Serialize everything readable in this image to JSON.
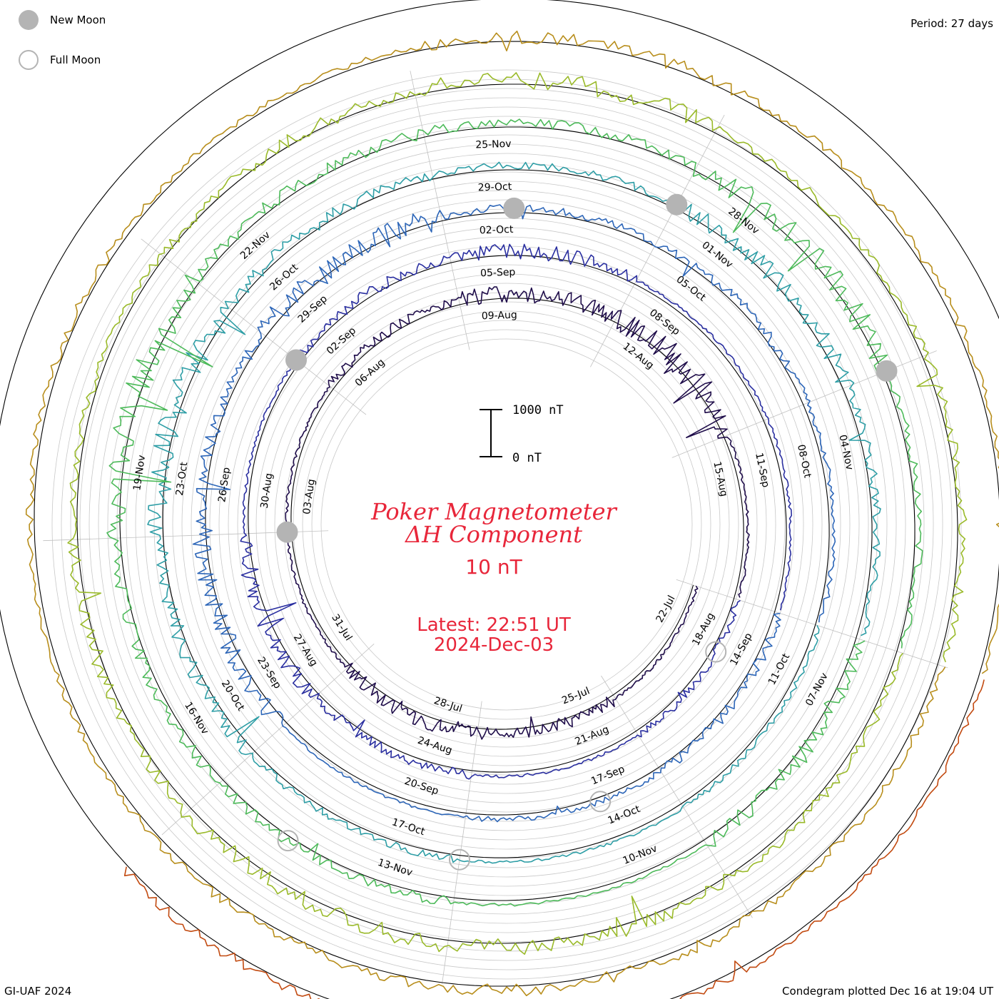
{
  "header": {
    "period": "Period: 27 days"
  },
  "legend": {
    "new_moon": {
      "label": "New Moon",
      "color": "#b4b4b4"
    },
    "full_moon": {
      "label": "Full Moon",
      "color": "#b4b4b4"
    }
  },
  "footer": {
    "left": "GI-UAF 2024",
    "right": "Condegram plotted Dec 16 at 19:04 UT"
  },
  "chart_data": {
    "type": "condegram",
    "title": "Poker Magnetometer",
    "subtitle": "ΔH Component",
    "scale_text": "10 nT",
    "latest_line1": "Latest: 22:51 UT",
    "latest_line2": "2024-Dec-03",
    "scale_bar": {
      "top_label": "1000 nT",
      "bottom_label": "0 nT",
      "top_value": 1000,
      "bottom_value": 0
    },
    "period_days": 27,
    "date_labels": [
      "03-Aug",
      "06-Aug",
      "09-Aug",
      "12-Aug",
      "15-Aug",
      "18-Aug",
      "21-Aug",
      "24-Aug",
      "27-Aug",
      "30-Aug",
      "02-Sep",
      "05-Sep",
      "08-Sep",
      "11-Sep",
      "14-Sep",
      "17-Sep",
      "20-Sep",
      "23-Sep",
      "26-Sep",
      "29-Sep",
      "02-Oct",
      "05-Oct",
      "08-Oct",
      "11-Oct",
      "14-Oct",
      "17-Oct",
      "20-Oct",
      "23-Oct",
      "26-Oct",
      "29-Oct",
      "01-Nov",
      "04-Nov",
      "07-Nov",
      "10-Nov",
      "13-Nov",
      "16-Nov",
      "19-Nov",
      "22-Nov",
      "25-Nov",
      "28-Nov",
      "22-Jul",
      "25-Jul",
      "28-Jul",
      "31-Jul"
    ],
    "series": [
      {
        "color": "#1f0d4a",
        "disturbance": [
          0,
          40,
          55,
          0,
          0,
          30,
          60,
          90,
          0
        ]
      },
      {
        "color": "#2a2fa0",
        "disturbance": [
          20,
          0,
          30,
          60,
          0,
          30,
          50,
          0,
          0
        ]
      },
      {
        "color": "#2d66b8",
        "disturbance": [
          30,
          10,
          0,
          70,
          40,
          90,
          20,
          30,
          10
        ]
      },
      {
        "color": "#2e9ea6",
        "disturbance": [
          10,
          0,
          20,
          50,
          90,
          40,
          20,
          60,
          30
        ]
      },
      {
        "color": "#4dba5a",
        "disturbance": [
          60,
          0,
          30,
          40,
          90,
          40,
          30,
          80,
          20
        ]
      },
      {
        "color": "#9aba2a",
        "disturbance": [
          30,
          50,
          60,
          40,
          20,
          40,
          60,
          20,
          30
        ]
      },
      {
        "color": "#b88e1c",
        "disturbance": [
          20,
          40,
          30,
          10,
          20,
          10,
          40,
          20,
          10
        ]
      },
      {
        "color": "#c24a10",
        "disturbance": [
          10,
          20,
          30,
          10,
          0,
          0,
          0,
          0,
          0
        ]
      }
    ],
    "new_moons": [
      "03-Aug",
      "02-Sep",
      "03-Oct",
      "01-Nov",
      "01-Dec"
    ],
    "full_moons": [
      "19-Aug",
      "18-Sep",
      "17-Oct",
      "15-Nov"
    ]
  }
}
